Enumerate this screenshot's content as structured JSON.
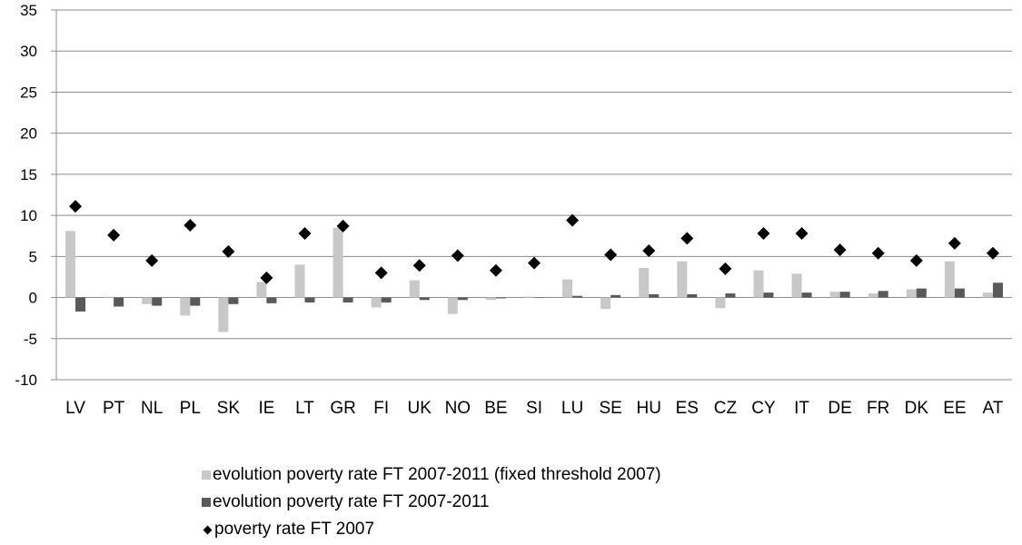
{
  "chart_data": {
    "type": "bar",
    "title": "",
    "xlabel": "",
    "ylabel": "",
    "ylim": [
      -10,
      35
    ],
    "yticks": [
      "35",
      "30",
      "25",
      "20",
      "15",
      "10",
      "5",
      "0",
      "-5",
      "-10"
    ],
    "grid": true,
    "legend_position": "bottom",
    "categories": [
      "LV",
      "PT",
      "NL",
      "PL",
      "SK",
      "IE",
      "LT",
      "GR",
      "FI",
      "UK",
      "NO",
      "BE",
      "SI",
      "LU",
      "SE",
      "HU",
      "ES",
      "CZ",
      "CY",
      "IT",
      "DE",
      "FR",
      "DK",
      "EE",
      "AT"
    ],
    "series": [
      {
        "name": "evolution poverty rate FT 2007-2011 (fixed threshold 2007)",
        "kind": "bar",
        "color": "#c8c8c8",
        "values": [
          8.1,
          0.1,
          -0.8,
          -2.2,
          -4.2,
          1.9,
          4.0,
          8.5,
          -1.2,
          2.1,
          -2.0,
          -0.3,
          0.1,
          2.2,
          -1.4,
          3.6,
          4.4,
          -1.3,
          3.3,
          2.9,
          0.7,
          0.5,
          1.0,
          4.4,
          0.6
        ]
      },
      {
        "name": "evolution poverty rate FT 2007-2011",
        "kind": "bar",
        "color": "#595959",
        "values": [
          -1.7,
          -1.1,
          -1.0,
          -1.0,
          -0.8,
          -0.7,
          -0.6,
          -0.6,
          -0.6,
          -0.3,
          -0.3,
          -0.1,
          0.0,
          0.2,
          0.3,
          0.4,
          0.4,
          0.5,
          0.6,
          0.6,
          0.7,
          0.8,
          1.1,
          1.1,
          1.8
        ]
      },
      {
        "name": "poverty rate FT 2007",
        "kind": "marker",
        "color": "#000000",
        "values": [
          11.1,
          7.6,
          4.5,
          8.8,
          5.6,
          2.4,
          7.8,
          8.7,
          3.0,
          3.9,
          5.1,
          3.3,
          4.2,
          9.4,
          5.2,
          5.7,
          7.2,
          3.5,
          7.8,
          7.8,
          5.8,
          5.4,
          4.5,
          6.6,
          5.4
        ]
      }
    ]
  }
}
